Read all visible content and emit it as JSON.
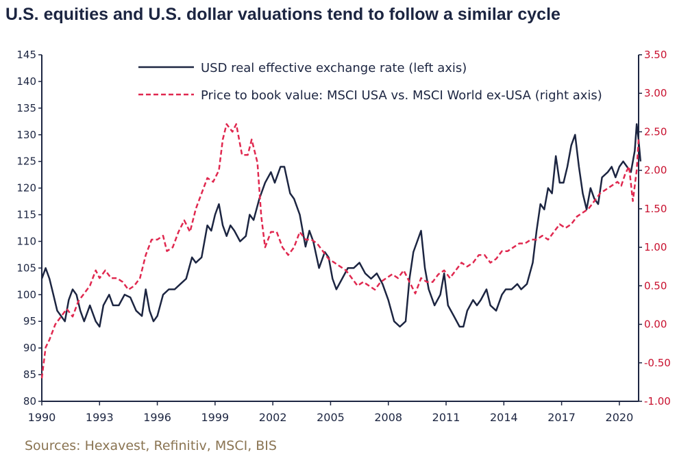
{
  "title": "U.S. equities and U.S. dollar valuations tend to follow a similar cycle",
  "source": "Sources: Hexavest, Refinitiv, MSCI, BIS",
  "colors": {
    "usd": "#1c2541",
    "pb": "#e0284f",
    "right_axis": "#c8102e"
  },
  "chart_data": {
    "type": "line",
    "x_ticks": [
      1990,
      1993,
      1996,
      1999,
      2002,
      2005,
      2008,
      2011,
      2014,
      2017,
      2020
    ],
    "xlim": [
      1990,
      2021
    ],
    "ylim_left": [
      80,
      145
    ],
    "left_ticks": [
      "80",
      "85",
      "90",
      "95",
      "100",
      "105",
      "110",
      "115",
      "120",
      "125",
      "130",
      "135",
      "140",
      "145"
    ],
    "ylim_right": [
      -1.0,
      3.5
    ],
    "right_ticks": [
      "-1.00",
      "-0.50",
      "0.00",
      "0.50",
      "1.00",
      "1.50",
      "2.00",
      "2.50",
      "3.00",
      "3.50"
    ],
    "legend_position": "top-right",
    "series": [
      {
        "name": "USD real effective exchange rate (left axis)",
        "axis": "left",
        "style": "solid",
        "points": [
          [
            1990.0,
            103
          ],
          [
            1990.2,
            105
          ],
          [
            1990.4,
            103
          ],
          [
            1990.6,
            100
          ],
          [
            1990.8,
            97
          ],
          [
            1991.0,
            96
          ],
          [
            1991.2,
            95
          ],
          [
            1991.4,
            99
          ],
          [
            1991.6,
            101
          ],
          [
            1991.8,
            100
          ],
          [
            1992.0,
            97
          ],
          [
            1992.2,
            95
          ],
          [
            1992.5,
            98
          ],
          [
            1992.8,
            95
          ],
          [
            1993.0,
            94
          ],
          [
            1993.2,
            98
          ],
          [
            1993.5,
            100
          ],
          [
            1993.7,
            98
          ],
          [
            1994.0,
            98
          ],
          [
            1994.3,
            100
          ],
          [
            1994.6,
            99.5
          ],
          [
            1994.9,
            97
          ],
          [
            1995.2,
            96
          ],
          [
            1995.4,
            101
          ],
          [
            1995.6,
            97
          ],
          [
            1995.8,
            95
          ],
          [
            1996.0,
            96
          ],
          [
            1996.3,
            100
          ],
          [
            1996.6,
            101
          ],
          [
            1996.9,
            101
          ],
          [
            1997.2,
            102
          ],
          [
            1997.5,
            103
          ],
          [
            1997.8,
            107
          ],
          [
            1998.0,
            106
          ],
          [
            1998.3,
            107
          ],
          [
            1998.6,
            113
          ],
          [
            1998.8,
            112
          ],
          [
            1999.0,
            115
          ],
          [
            1999.2,
            117
          ],
          [
            1999.4,
            113
          ],
          [
            1999.6,
            111
          ],
          [
            1999.8,
            113
          ],
          [
            2000.0,
            112
          ],
          [
            2000.3,
            110
          ],
          [
            2000.6,
            111
          ],
          [
            2000.8,
            115
          ],
          [
            2001.0,
            114
          ],
          [
            2001.3,
            118
          ],
          [
            2001.6,
            121
          ],
          [
            2001.9,
            123
          ],
          [
            2002.1,
            121
          ],
          [
            2002.4,
            124
          ],
          [
            2002.6,
            124
          ],
          [
            2002.9,
            119
          ],
          [
            2003.1,
            118
          ],
          [
            2003.4,
            115
          ],
          [
            2003.7,
            109
          ],
          [
            2003.9,
            112
          ],
          [
            2004.1,
            110
          ],
          [
            2004.4,
            105
          ],
          [
            2004.7,
            108
          ],
          [
            2004.9,
            107
          ],
          [
            2005.1,
            103
          ],
          [
            2005.3,
            101
          ],
          [
            2005.6,
            103
          ],
          [
            2005.9,
            105
          ],
          [
            2006.2,
            105
          ],
          [
            2006.5,
            106
          ],
          [
            2006.8,
            104
          ],
          [
            2007.1,
            103
          ],
          [
            2007.4,
            104
          ],
          [
            2007.7,
            102
          ],
          [
            2008.0,
            99
          ],
          [
            2008.3,
            95
          ],
          [
            2008.6,
            94
          ],
          [
            2008.9,
            95
          ],
          [
            2009.1,
            103
          ],
          [
            2009.3,
            108
          ],
          [
            2009.5,
            110
          ],
          [
            2009.7,
            112
          ],
          [
            2009.9,
            105
          ],
          [
            2010.1,
            101
          ],
          [
            2010.4,
            98
          ],
          [
            2010.7,
            100
          ],
          [
            2010.9,
            104
          ],
          [
            2011.1,
            98
          ],
          [
            2011.4,
            96
          ],
          [
            2011.7,
            94
          ],
          [
            2011.9,
            94
          ],
          [
            2012.1,
            97
          ],
          [
            2012.4,
            99
          ],
          [
            2012.6,
            98
          ],
          [
            2012.8,
            99
          ],
          [
            2013.1,
            101
          ],
          [
            2013.3,
            98
          ],
          [
            2013.6,
            97
          ],
          [
            2013.9,
            100
          ],
          [
            2014.1,
            101
          ],
          [
            2014.4,
            101
          ],
          [
            2014.7,
            102
          ],
          [
            2014.9,
            101
          ],
          [
            2015.2,
            102
          ],
          [
            2015.5,
            106
          ],
          [
            2015.7,
            112
          ],
          [
            2015.9,
            117
          ],
          [
            2016.1,
            116
          ],
          [
            2016.3,
            120
          ],
          [
            2016.5,
            119
          ],
          [
            2016.7,
            126
          ],
          [
            2016.9,
            121
          ],
          [
            2017.1,
            121
          ],
          [
            2017.3,
            124
          ],
          [
            2017.5,
            128
          ],
          [
            2017.7,
            130
          ],
          [
            2017.9,
            124
          ],
          [
            2018.1,
            119
          ],
          [
            2018.3,
            116
          ],
          [
            2018.5,
            120
          ],
          [
            2018.7,
            118
          ],
          [
            2018.9,
            117
          ],
          [
            2019.1,
            122
          ],
          [
            2019.4,
            123
          ],
          [
            2019.6,
            124
          ],
          [
            2019.8,
            122
          ],
          [
            2020.0,
            124
          ],
          [
            2020.2,
            125
          ],
          [
            2020.4,
            124
          ],
          [
            2020.6,
            123
          ],
          [
            2020.8,
            127
          ],
          [
            2020.9,
            132
          ],
          [
            2021.0,
            129
          ],
          [
            2021.1,
            125
          ]
        ]
      },
      {
        "name": "Price to book value: MSCI USA vs. MSCI World ex-USA (right axis)",
        "axis": "right",
        "style": "dashed",
        "points": [
          [
            1990.0,
            -0.7
          ],
          [
            1990.2,
            -0.3
          ],
          [
            1990.4,
            -0.2
          ],
          [
            1990.7,
            0.0
          ],
          [
            1991.0,
            0.1
          ],
          [
            1991.3,
            0.2
          ],
          [
            1991.6,
            0.1
          ],
          [
            1991.9,
            0.3
          ],
          [
            1992.2,
            0.4
          ],
          [
            1992.5,
            0.5
          ],
          [
            1992.8,
            0.7
          ],
          [
            1993.0,
            0.6
          ],
          [
            1993.3,
            0.7
          ],
          [
            1993.6,
            0.6
          ],
          [
            1993.9,
            0.6
          ],
          [
            1994.2,
            0.55
          ],
          [
            1994.5,
            0.45
          ],
          [
            1994.8,
            0.5
          ],
          [
            1995.1,
            0.6
          ],
          [
            1995.4,
            0.9
          ],
          [
            1995.7,
            1.1
          ],
          [
            1996.0,
            1.1
          ],
          [
            1996.3,
            1.15
          ],
          [
            1996.5,
            0.95
          ],
          [
            1996.8,
            1.0
          ],
          [
            1997.1,
            1.2
          ],
          [
            1997.4,
            1.35
          ],
          [
            1997.7,
            1.2
          ],
          [
            1998.0,
            1.5
          ],
          [
            1998.3,
            1.7
          ],
          [
            1998.6,
            1.9
          ],
          [
            1998.9,
            1.85
          ],
          [
            1999.2,
            2.0
          ],
          [
            1999.4,
            2.4
          ],
          [
            1999.6,
            2.6
          ],
          [
            1999.9,
            2.5
          ],
          [
            2000.1,
            2.6
          ],
          [
            2000.4,
            2.2
          ],
          [
            2000.7,
            2.2
          ],
          [
            2000.9,
            2.4
          ],
          [
            2001.2,
            2.1
          ],
          [
            2001.4,
            1.4
          ],
          [
            2001.6,
            1.0
          ],
          [
            2001.9,
            1.2
          ],
          [
            2002.2,
            1.2
          ],
          [
            2002.5,
            1.0
          ],
          [
            2002.8,
            0.9
          ],
          [
            2003.1,
            1.0
          ],
          [
            2003.4,
            1.2
          ],
          [
            2003.7,
            1.1
          ],
          [
            2004.0,
            1.1
          ],
          [
            2004.3,
            1.05
          ],
          [
            2004.6,
            0.95
          ],
          [
            2004.9,
            0.85
          ],
          [
            2005.2,
            0.8
          ],
          [
            2005.5,
            0.75
          ],
          [
            2005.8,
            0.7
          ],
          [
            2006.1,
            0.6
          ],
          [
            2006.4,
            0.5
          ],
          [
            2006.7,
            0.55
          ],
          [
            2007.0,
            0.5
          ],
          [
            2007.3,
            0.45
          ],
          [
            2007.6,
            0.55
          ],
          [
            2007.9,
            0.6
          ],
          [
            2008.2,
            0.65
          ],
          [
            2008.5,
            0.6
          ],
          [
            2008.8,
            0.7
          ],
          [
            2009.1,
            0.55
          ],
          [
            2009.4,
            0.4
          ],
          [
            2009.7,
            0.6
          ],
          [
            2010.0,
            0.55
          ],
          [
            2010.3,
            0.55
          ],
          [
            2010.6,
            0.65
          ],
          [
            2010.9,
            0.7
          ],
          [
            2011.2,
            0.6
          ],
          [
            2011.5,
            0.7
          ],
          [
            2011.8,
            0.8
          ],
          [
            2012.1,
            0.75
          ],
          [
            2012.4,
            0.8
          ],
          [
            2012.7,
            0.9
          ],
          [
            2013.0,
            0.9
          ],
          [
            2013.3,
            0.8
          ],
          [
            2013.6,
            0.85
          ],
          [
            2013.9,
            0.95
          ],
          [
            2014.2,
            0.95
          ],
          [
            2014.5,
            1.0
          ],
          [
            2014.8,
            1.05
          ],
          [
            2015.1,
            1.05
          ],
          [
            2015.4,
            1.1
          ],
          [
            2015.7,
            1.1
          ],
          [
            2016.0,
            1.15
          ],
          [
            2016.3,
            1.1
          ],
          [
            2016.6,
            1.2
          ],
          [
            2016.9,
            1.3
          ],
          [
            2017.2,
            1.25
          ],
          [
            2017.5,
            1.3
          ],
          [
            2017.8,
            1.4
          ],
          [
            2018.1,
            1.45
          ],
          [
            2018.4,
            1.5
          ],
          [
            2018.7,
            1.6
          ],
          [
            2019.0,
            1.7
          ],
          [
            2019.3,
            1.75
          ],
          [
            2019.6,
            1.8
          ],
          [
            2019.9,
            1.85
          ],
          [
            2020.1,
            1.8
          ],
          [
            2020.3,
            1.95
          ],
          [
            2020.5,
            2.05
          ],
          [
            2020.7,
            1.6
          ],
          [
            2020.9,
            2.0
          ],
          [
            2021.0,
            2.4
          ]
        ]
      }
    ]
  }
}
